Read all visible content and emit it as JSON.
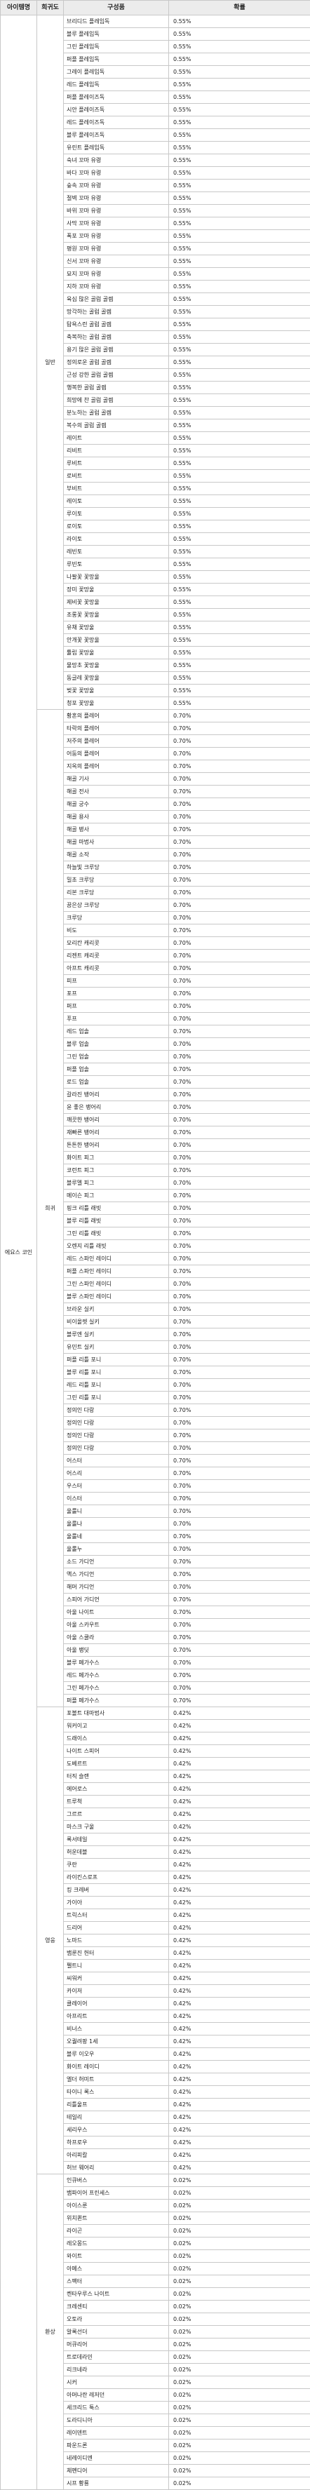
{
  "headers": [
    "아이템명",
    "희귀도",
    "구성품",
    "확률"
  ],
  "item_name": "에요스 코인",
  "groups": [
    {
      "rarity": "일반",
      "rows": [
        [
          "브리디드 플레임독",
          "0.55%"
        ],
        [
          "블루 플레임독",
          "0.55%"
        ],
        [
          "그린 플레임독",
          "0.55%"
        ],
        [
          "퍼플 플레임독",
          "0.55%"
        ],
        [
          "그레이 플레임독",
          "0.55%"
        ],
        [
          "레드 플레임독",
          "0.55%"
        ],
        [
          "퍼플 플레이즈독",
          "0.55%"
        ],
        [
          "시안 플레이즈독",
          "0.55%"
        ],
        [
          "레드 플레이즈독",
          "0.55%"
        ],
        [
          "블루 플레이즈독",
          "0.55%"
        ],
        [
          "유린트 플레임독",
          "0.55%"
        ],
        [
          "숙녀 꼬마 유령",
          "0.55%"
        ],
        [
          "바다 꼬마 유령",
          "0.55%"
        ],
        [
          "숲속 꼬마 유령",
          "0.55%"
        ],
        [
          "절벽 꼬마 유령",
          "0.55%"
        ],
        [
          "바위 꼬마 유령",
          "0.55%"
        ],
        [
          "사막 꼬마 유령",
          "0.55%"
        ],
        [
          "폭포 꼬마 유령",
          "0.55%"
        ],
        [
          "평원 꼬마 유령",
          "0.55%"
        ],
        [
          "신서 꼬마 유령",
          "0.55%"
        ],
        [
          "묘지 꼬마 유령",
          "0.55%"
        ],
        [
          "지하 꼬마 유령",
          "0.55%"
        ],
        [
          "육심 많은 골럼 골렘",
          "0.55%"
        ],
        [
          "망각하는 골럼 골렘",
          "0.55%"
        ],
        [
          "탐욕스런 골럼 골렘",
          "0.55%"
        ],
        [
          "축복하는 골럼 골렘",
          "0.55%"
        ],
        [
          "용기 많은 골럼 골렘",
          "0.55%"
        ],
        [
          "정의로운 골럼 골렘",
          "0.55%"
        ],
        [
          "근성 강한 골럼 골렘",
          "0.55%"
        ],
        [
          "행복한 골럼 골렘",
          "0.55%"
        ],
        [
          "희망에 찬 골럼 골렘",
          "0.55%"
        ],
        [
          "분노하는 골럼 골렘",
          "0.55%"
        ],
        [
          "복수의 골럼 골렘",
          "0.55%"
        ],
        [
          "레이트",
          "0.55%"
        ],
        [
          "리비트",
          "0.55%"
        ],
        [
          "루비트",
          "0.55%"
        ],
        [
          "로비트",
          "0.55%"
        ],
        [
          "부비트",
          "0.55%"
        ],
        [
          "레이토",
          "0.55%"
        ],
        [
          "루이토",
          "0.55%"
        ],
        [
          "로이토",
          "0.55%"
        ],
        [
          "라이토",
          "0.55%"
        ],
        [
          "레빈토",
          "0.55%"
        ],
        [
          "루빈토",
          "0.55%"
        ],
        [
          "나팔꽃 꽃망울",
          "0.55%"
        ],
        [
          "장미 꽃망울",
          "0.55%"
        ],
        [
          "제비꽃 꽃망울",
          "0.55%"
        ],
        [
          "조롱꽃 꽃망울",
          "0.55%"
        ],
        [
          "유채 꽃망울",
          "0.55%"
        ],
        [
          "안개꽃 꽃망울",
          "0.55%"
        ],
        [
          "튤립 꽃망울",
          "0.55%"
        ],
        [
          "물망초 꽃망울",
          "0.55%"
        ],
        [
          "동글레 꽃망울",
          "0.55%"
        ],
        [
          "벚꽃 꽃망울",
          "0.55%"
        ],
        [
          "청포 꽃망울",
          "0.55%"
        ]
      ]
    },
    {
      "rarity": "희귀",
      "rows": [
        [
          "황혼의 플레어",
          "0.70%"
        ],
        [
          "타락의 플레어",
          "0.70%"
        ],
        [
          "저주의 플레어",
          "0.70%"
        ],
        [
          "어둠의 플레어",
          "0.70%"
        ],
        [
          "지옥의 플레어",
          "0.70%"
        ],
        [
          "해골 기사",
          "0.70%"
        ],
        [
          "해골 전사",
          "0.70%"
        ],
        [
          "해골 궁수",
          "0.70%"
        ],
        [
          "해골 용사",
          "0.70%"
        ],
        [
          "해골 병사",
          "0.70%"
        ],
        [
          "해골 마법사",
          "0.70%"
        ],
        [
          "해골 소작",
          "0.70%"
        ],
        [
          "하늘빛 크루당",
          "0.70%"
        ],
        [
          "밀초 크루당",
          "0.70%"
        ],
        [
          "리본 크루당",
          "0.70%"
        ],
        [
          "꿈은상 크루당",
          "0.70%"
        ],
        [
          "크루당",
          "0.70%"
        ],
        [
          "비도",
          "0.70%"
        ],
        [
          "모리칸 캐리콧",
          "0.70%"
        ],
        [
          "리젠트 캐리콧",
          "0.70%"
        ],
        [
          "아프트 캐리콧",
          "0.70%"
        ],
        [
          "피프",
          "0.70%"
        ],
        [
          "포프",
          "0.70%"
        ],
        [
          "퍼프",
          "0.70%"
        ],
        [
          "푸프",
          "0.70%"
        ],
        [
          "레드 업솔",
          "0.70%"
        ],
        [
          "블루 업솔",
          "0.70%"
        ],
        [
          "그린 업솔",
          "0.70%"
        ],
        [
          "퍼플 업솔",
          "0.70%"
        ],
        [
          "로드 업솔",
          "0.70%"
        ],
        [
          "갈라진 뱅어리",
          "0.70%"
        ],
        [
          "윤 좋은 뱅어리",
          "0.70%"
        ],
        [
          "깨끗한 뱅어리",
          "0.70%"
        ],
        [
          "재빠른 뱅어리",
          "0.70%"
        ],
        [
          "튼튼한 뱅어리",
          "0.70%"
        ],
        [
          "화이트 피그",
          "0.70%"
        ],
        [
          "코런트 피그",
          "0.70%"
        ],
        [
          "블루멜 피그",
          "0.70%"
        ],
        [
          "메이슨 피그",
          "0.70%"
        ],
        [
          "핑크 리틀 래빗",
          "0.70%"
        ],
        [
          "블루 리틀 래빗",
          "0.70%"
        ],
        [
          "그린 리틀 래빗",
          "0.70%"
        ],
        [
          "오렌지 리틀 래빗",
          "0.70%"
        ],
        [
          "레드 스파인 레이디",
          "0.70%"
        ],
        [
          "퍼플 스파인 레이디",
          "0.70%"
        ],
        [
          "그린 스파인 레이디",
          "0.70%"
        ],
        [
          "블루 스파인 레이디",
          "0.70%"
        ],
        [
          "브라운 실키",
          "0.70%"
        ],
        [
          "비이올렛 실키",
          "0.70%"
        ],
        [
          "블루엔 실키",
          "0.70%"
        ],
        [
          "유민트 실키",
          "0.70%"
        ],
        [
          "퍼플 리틀 포니",
          "0.70%"
        ],
        [
          "블루 리틀 포니",
          "0.70%"
        ],
        [
          "레드 리틀 포니",
          "0.70%"
        ],
        [
          "그린 리틀 포니",
          "0.70%"
        ],
        [
          "정의인 다랑",
          "0.70%"
        ],
        [
          "정의인 다랑",
          "0.70%"
        ],
        [
          "정의인 다랑",
          "0.70%"
        ],
        [
          "정의인 다랑",
          "0.70%"
        ],
        [
          "어스터",
          "0.70%"
        ],
        [
          "어스리",
          "0.70%"
        ],
        [
          "우스터",
          "0.70%"
        ],
        [
          "이스터",
          "0.70%"
        ],
        [
          "울룰니",
          "0.70%"
        ],
        [
          "울룰나",
          "0.70%"
        ],
        [
          "울룰네",
          "0.70%"
        ],
        [
          "울롤누",
          "0.70%"
        ],
        [
          "소드 가디언",
          "0.70%"
        ],
        [
          "액스 가디언",
          "0.70%"
        ],
        [
          "해머 가디언",
          "0.70%"
        ],
        [
          "스피어 가디언",
          "0.70%"
        ],
        [
          "아울 나이트",
          "0.70%"
        ],
        [
          "아울 스카우트",
          "0.70%"
        ],
        [
          "아울 스쿨라",
          "0.70%"
        ],
        [
          "아울 뱅딧",
          "0.70%"
        ],
        [
          "블루 페가수스",
          "0.70%"
        ],
        [
          "레드 페가수스",
          "0.70%"
        ],
        [
          "그린 페가수스",
          "0.70%"
        ],
        [
          "퍼플 페가수스",
          "0.70%"
        ]
      ]
    },
    {
      "rarity": "영웅",
      "rows": [
        [
          "포볼트 대마법사",
          "0.42%"
        ],
        [
          "워커이고",
          "0.42%"
        ],
        [
          "드래이스",
          "0.42%"
        ],
        [
          "나이트 스피어",
          "0.42%"
        ],
        [
          "도베르트",
          "0.42%"
        ],
        [
          "터직 슬랜",
          "0.42%"
        ],
        [
          "에어로스",
          "0.42%"
        ],
        [
          "트루척",
          "0.42%"
        ],
        [
          "그르르",
          "0.42%"
        ],
        [
          "마스크 구울",
          "0.42%"
        ],
        [
          "록서테일",
          "0.42%"
        ],
        [
          "허운데블",
          "0.42%"
        ],
        [
          "쿠란",
          "0.42%"
        ],
        [
          "라이킨스로프",
          "0.42%"
        ],
        [
          "킹 크레버",
          "0.42%"
        ],
        [
          "가이아",
          "0.42%"
        ],
        [
          "트릭스터",
          "0.42%"
        ],
        [
          "드리어",
          "0.42%"
        ],
        [
          "노마드",
          "0.42%"
        ],
        [
          "뱀룬진 헌터",
          "0.42%"
        ],
        [
          "펠트니",
          "0.42%"
        ],
        [
          "씨워커",
          "0.42%"
        ],
        [
          "카이저",
          "0.42%"
        ],
        [
          "클레이어",
          "0.42%"
        ],
        [
          "아프리트",
          "0.42%"
        ],
        [
          "비너스",
          "0.42%"
        ],
        [
          "오퀄려팡 1세",
          "0.42%"
        ],
        [
          "블루 이오우",
          "0.42%"
        ],
        [
          "화이트 레이디",
          "0.42%"
        ],
        [
          "엘더 허미트",
          "0.42%"
        ],
        [
          "타이니 록스",
          "0.42%"
        ],
        [
          "리틀울프",
          "0.42%"
        ],
        [
          "테일리",
          "0.42%"
        ],
        [
          "세리우스",
          "0.42%"
        ],
        [
          "하프로우",
          "0.42%"
        ],
        [
          "아리피칼",
          "0.42%"
        ],
        [
          "허브 웨어리",
          "0.42%"
        ]
      ]
    },
    {
      "rarity": "환상",
      "rows": [
        [
          "인큐버스",
          "0.02%"
        ],
        [
          "뱀파이어 프린세스",
          "0.02%"
        ],
        [
          "아이스룬",
          "0.02%"
        ],
        [
          "위치퀸트",
          "0.02%"
        ],
        [
          "라이곤",
          "0.02%"
        ],
        [
          "레오몽드",
          "0.02%"
        ],
        [
          "와이트",
          "0.02%"
        ],
        [
          "아메스",
          "0.02%"
        ],
        [
          "스팩터",
          "0.02%"
        ],
        [
          "켄타우루스 나이트",
          "0.02%"
        ],
        [
          "크레센티",
          "0.02%"
        ],
        [
          "오토라",
          "0.02%"
        ],
        [
          "알록선더",
          "0.02%"
        ],
        [
          "머큐리어",
          "0.02%"
        ],
        [
          "트로데라민",
          "0.02%"
        ],
        [
          "리크네라",
          "0.02%"
        ],
        [
          "시커",
          "0.02%"
        ],
        [
          "아머나란 레저던",
          "0.02%"
        ],
        [
          "세크리드 툭스",
          "0.02%"
        ],
        [
          "도라디니아",
          "0.02%"
        ],
        [
          "레이덴트",
          "0.02%"
        ],
        [
          "파운드론",
          "0.02%"
        ],
        [
          "네레이디엔",
          "0.02%"
        ],
        [
          "체펜디어",
          "0.02%"
        ],
        [
          "시프 황룡",
          "0.02%"
        ]
      ]
    }
  ]
}
